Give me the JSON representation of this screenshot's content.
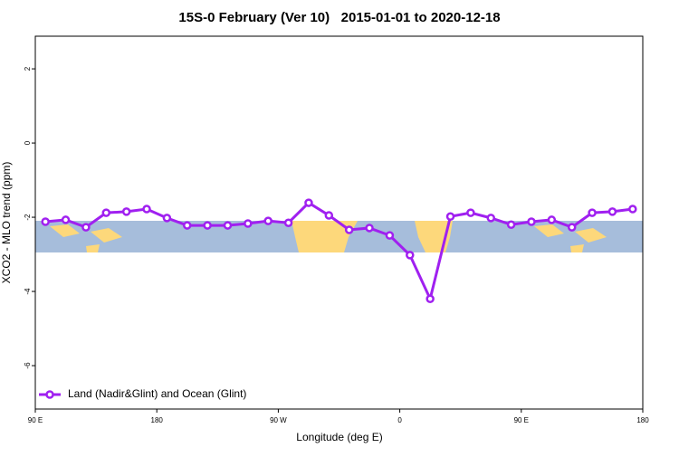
{
  "chart_data": {
    "type": "line",
    "title": "15S-0 February (Ver 10)   2015-01-01 to 2020-12-18",
    "x_label": "Longitude (deg E)",
    "y_label": "XCO2 - MLO trend (ppm)",
    "xlim": [
      90,
      540
    ],
    "xticks": [
      {
        "value": 90,
        "label": "90 E"
      },
      {
        "value": 180,
        "label": "180"
      },
      {
        "value": 270,
        "label": "90 W"
      },
      {
        "value": 360,
        "label": "0"
      },
      {
        "value": 450,
        "label": "90 E"
      },
      {
        "value": 540,
        "label": "180"
      }
    ],
    "ylim": [
      -7.17,
      2.88
    ],
    "yticks": [
      2,
      0,
      -2,
      -4,
      -6
    ],
    "legend": "bottom-left",
    "series": [
      {
        "name": "Land (Nadir&Glint) and Ocean (Glint)",
        "color": "#a020f0",
        "x": [
          97.5,
          112.5,
          127.5,
          142.5,
          157.5,
          172.5,
          187.5,
          202.5,
          217.5,
          232.5,
          247.5,
          262.5,
          277.5,
          292.5,
          307.5,
          322.5,
          337.5,
          352.5,
          367.5,
          382.5,
          397.5,
          412.5,
          427.5,
          442.5,
          457.5,
          472.5,
          487.5,
          502.5,
          517.5,
          532.5
        ],
        "values": [
          -2.12,
          -2.07,
          -2.27,
          -1.88,
          -1.85,
          -1.78,
          -2.02,
          -2.22,
          -2.22,
          -2.22,
          -2.17,
          -2.1,
          -2.15,
          -1.61,
          -1.95,
          -2.34,
          -2.29,
          -2.49,
          -3.02,
          -4.2,
          -1.98,
          -1.88,
          -2.02,
          -2.2,
          -2.12,
          -2.07,
          -2.27,
          -1.88,
          -1.85,
          -1.78
        ]
      }
    ]
  }
}
